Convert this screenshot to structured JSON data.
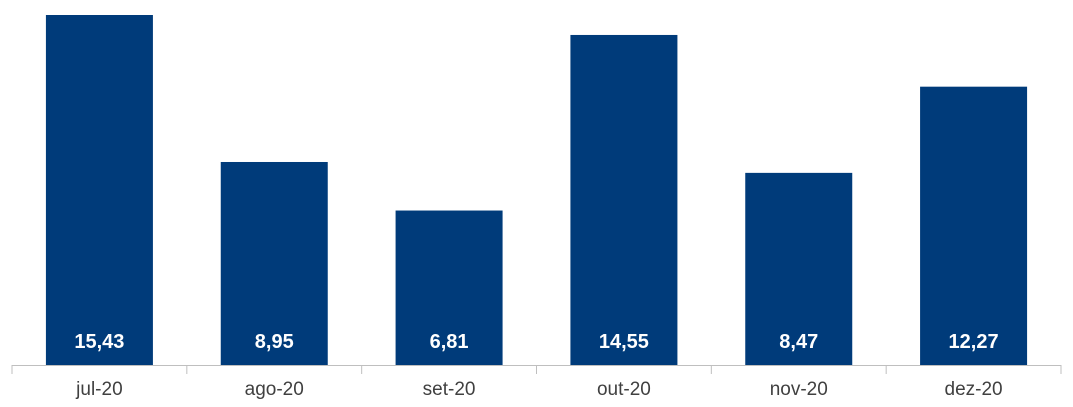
{
  "colors": {
    "bar": "#003B7A",
    "axis": "#BFBFBF",
    "label_text": "#FFFFFF",
    "tick_text": "#404040"
  },
  "chart_data": {
    "type": "bar",
    "title": "",
    "xlabel": "",
    "ylabel": "",
    "categories": [
      "jul-20",
      "ago-20",
      "set-20",
      "out-20",
      "nov-20",
      "dez-20"
    ],
    "values": [
      15.43,
      8.95,
      6.81,
      14.55,
      8.47,
      12.27
    ],
    "value_labels": [
      "15,43",
      "8,95",
      "6,81",
      "14,55",
      "8,47",
      "12,27"
    ],
    "ylim": [
      0,
      15.43
    ],
    "grid": false,
    "legend": "none",
    "data_label_position": "inside-base"
  }
}
